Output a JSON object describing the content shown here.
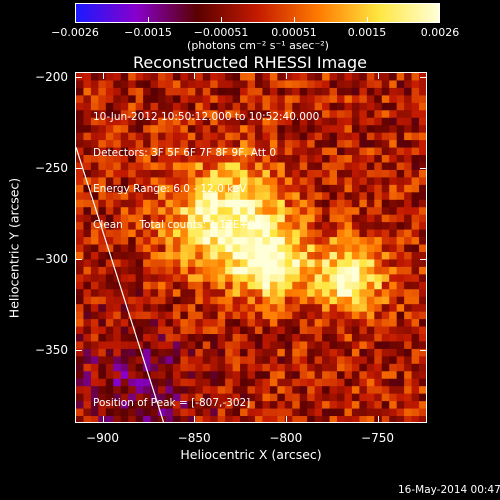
{
  "colorbar": {
    "ticks": [
      "−0.0026",
      "−0.0015",
      "−0.00051",
      "0.00051",
      "0.0015",
      "0.0026"
    ],
    "unit": "(photons cm⁻² s⁻¹ asec⁻²)",
    "colors": [
      "#1a1aff",
      "#8800cc",
      "#5a0000",
      "#c41a00",
      "#ff7a00",
      "#ffe640",
      "#ffffd8"
    ]
  },
  "title": "Reconstructed RHESSI Image",
  "info": {
    "time_range": "10-Jun-2012 10:50:12.000 to 10:52:40.000",
    "detectors": "Detectors: 3F 5F 6F 7F 8F 9F, Att 0",
    "energy": "Energy Range: 6.0 - 12.0 keV",
    "clean": "Clean     Total counts: 1.17E+04",
    "peak": "Position of Peak = [-807,-302]"
  },
  "axes": {
    "x_label": "Heliocentric X (arcsec)",
    "y_label": "Heliocentric Y (arcsec)",
    "x_ticks": [
      "−900",
      "−850",
      "−800",
      "−750"
    ],
    "y_ticks": [
      "−200",
      "−250",
      "−300",
      "−350"
    ]
  },
  "timestamp": "16-May-2014 00:47",
  "chart_data": {
    "type": "heatmap",
    "title": "Reconstructed RHESSI Image",
    "xlabel": "Heliocentric X (arcsec)",
    "ylabel": "Heliocentric Y (arcsec)",
    "xlim": [
      -915,
      -723
    ],
    "ylim": [
      -390,
      -197
    ],
    "color_range": [
      -0.0026,
      0.0026
    ],
    "x_ticks": [
      -900,
      -850,
      -800,
      -750
    ],
    "y_ticks": [
      -200,
      -250,
      -300,
      -350
    ],
    "sources": [
      {
        "x": -807,
        "y": -302,
        "value": 0.0026
      },
      {
        "x": -832,
        "y": -278,
        "value": 0.0022
      },
      {
        "x": -765,
        "y": -310,
        "value": 0.0021
      }
    ],
    "limb_line": [
      [
        -915,
        -238
      ],
      [
        -867,
        -390
      ]
    ]
  }
}
